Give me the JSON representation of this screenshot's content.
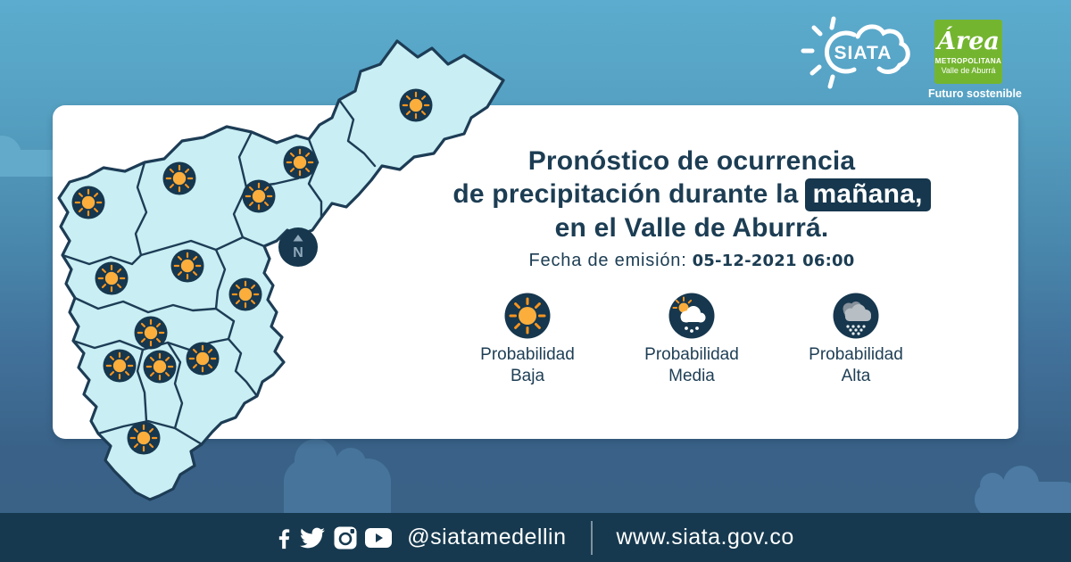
{
  "header": {
    "siata_logo": {
      "text": "SIATA"
    },
    "amva_logo": {
      "script": "Área",
      "line2": "METROPOLITANA",
      "line3": "Valle de Aburrá",
      "tagline": "Futuro sostenible"
    }
  },
  "card": {
    "title": {
      "line1": "Pronóstico de ocurrencia",
      "line2_prefix": "de precipitación durante la",
      "highlight": "mañana,",
      "line3": "en el Valle de Aburrá."
    },
    "emission": {
      "label": "Fecha de emisión:",
      "value": "05-12-2021 06:00"
    },
    "legend": [
      {
        "icon": "sun-icon",
        "line1": "Probabilidad",
        "line2": "Baja"
      },
      {
        "icon": "sun-cloud-rain-icon",
        "line1": "Probabilidad",
        "line2": "Media"
      },
      {
        "icon": "rain-cloud-icon",
        "line1": "Probabilidad",
        "line2": "Alta"
      }
    ]
  },
  "map": {
    "compass_label": "N",
    "marker_type": "sun",
    "markers": [
      [
        416,
        90
      ],
      [
        286,
        154
      ],
      [
        151,
        172
      ],
      [
        49,
        199
      ],
      [
        240,
        192
      ],
      [
        75,
        284
      ],
      [
        160,
        270
      ],
      [
        225,
        302
      ],
      [
        119,
        345
      ],
      [
        84,
        382
      ],
      [
        129,
        383
      ],
      [
        177,
        374
      ],
      [
        111,
        463
      ]
    ]
  },
  "footer": {
    "handle": "@siatamedellin",
    "website": "www.siata.gov.co",
    "social": [
      "facebook-icon",
      "twitter-icon",
      "instagram-icon",
      "youtube-icon"
    ]
  },
  "colors": {
    "background_top": "#5BACCE",
    "background_bottom": "#3A6186",
    "footer_bar": "#16394F",
    "navy_text": "#1C3D53",
    "highlight_bg": "#16374E",
    "map_fill": "#C9EEF3",
    "map_border": "#1D3C55",
    "marker_circle": "#16374E",
    "sun_disc": "#FBAE3C",
    "sun_rays": "#F7941E",
    "amva_green": "#74B530",
    "white": "#FFFFFF"
  }
}
